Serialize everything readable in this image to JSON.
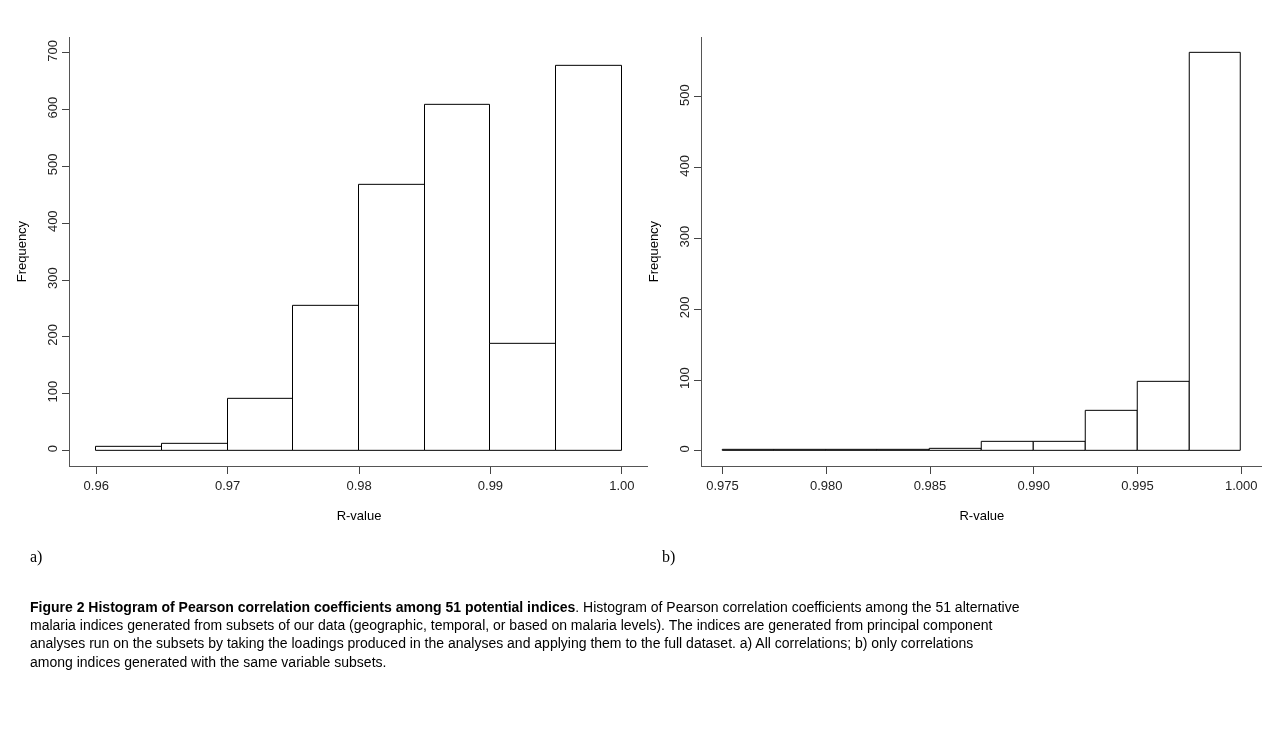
{
  "chart_data": [
    {
      "type": "histogram",
      "xlabel": "R-value",
      "ylabel": "Frequency",
      "color": "#ffffff",
      "bins": [
        0.96,
        0.965,
        0.97,
        0.975,
        0.98,
        0.985,
        0.99,
        0.995,
        1.0
      ],
      "values": [
        7,
        12,
        90,
        254,
        468,
        608,
        188,
        677
      ],
      "xlim": [
        0.958,
        1.002
      ],
      "ylim": [
        -28,
        728
      ],
      "xticks": [
        0.96,
        0.97,
        0.98,
        0.99,
        {
          "value": 1.0,
          "label": "1.00"
        }
      ],
      "yticks": [
        0,
        100,
        200,
        300,
        400,
        500,
        600,
        700
      ],
      "annotations": [
        "a)"
      ]
    },
    {
      "type": "histogram",
      "xlabel": "R-value",
      "ylabel": "Frequency",
      "color": "#ffffff",
      "bins": [
        0.975,
        0.9775,
        0.98,
        0.9825,
        0.985,
        0.9875,
        0.99,
        0.9925,
        0.995,
        0.9975,
        1.0
      ],
      "values": [
        2,
        2,
        2,
        1,
        3,
        12,
        12,
        57,
        97,
        562
      ],
      "xlim": [
        0.974,
        1.001
      ],
      "ylim": [
        -22,
        585
      ],
      "xticks": [
        0.975,
        {
          "value": 0.98,
          "label": "0.980"
        },
        0.985,
        {
          "value": 0.99,
          "label": "0.990"
        },
        0.995,
        {
          "value": 1.0,
          "label": "1.000"
        }
      ],
      "yticks": [
        0,
        100,
        200,
        300,
        400,
        500
      ],
      "annotations": [
        "b)",
        "Figure 2 Histogram of Pearson correlation coefficients among 51 potential indices",
        ". Histogram of Pearson correlation coefficients among the 51 alternative malaria indices generated from subsets of our data (geographic, temporal, or based on malaria levels). The indices are generated from principal component analyses run on the subsets by taking the loadings produced in the analyses and applying them to the full dataset. a) All correlations; b) only correlations among indices generated with the same variable subsets."
      ]
    }
  ]
}
